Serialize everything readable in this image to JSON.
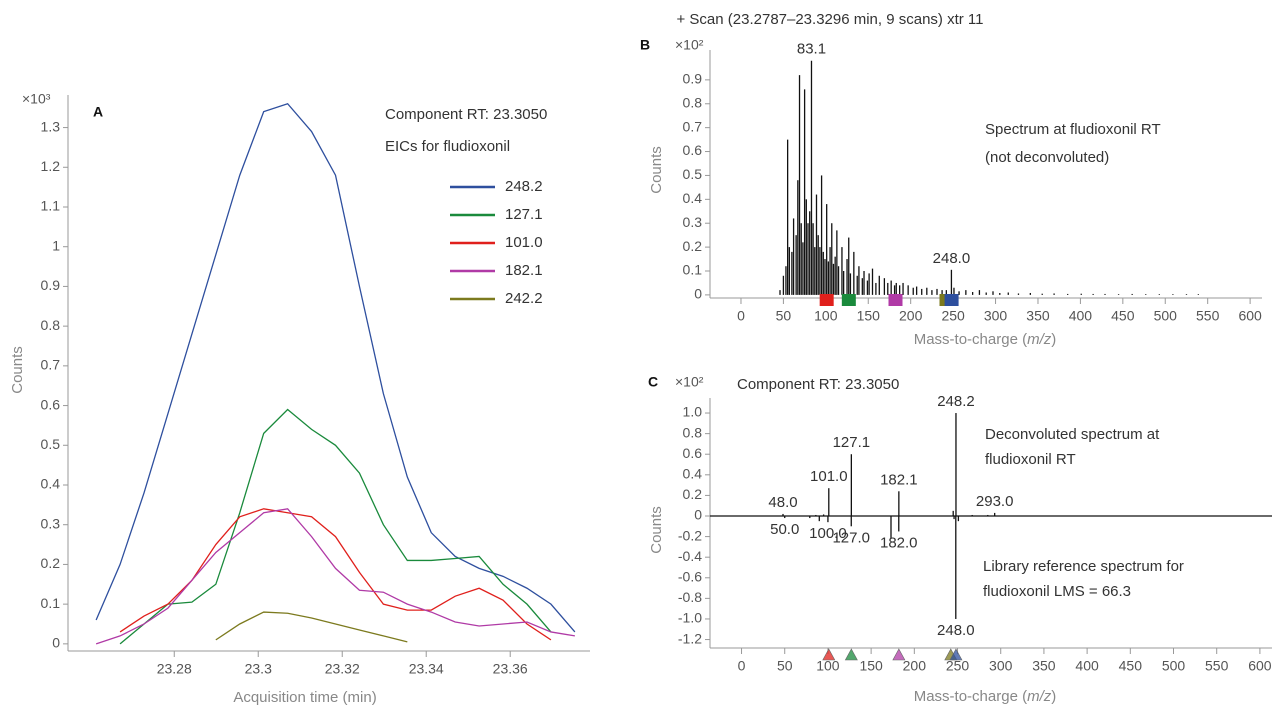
{
  "chart_data": [
    {
      "type": "line",
      "panel_label": "A",
      "unit_label": "×10³",
      "y_label": "Counts",
      "x_label": "Acquisition time (min)",
      "notes": [
        "Component RT: 23.3050",
        "EICs for fludioxonil"
      ],
      "x": [
        23.2614,
        23.2671,
        23.2728,
        23.2785,
        23.2842,
        23.2899,
        23.2956,
        23.3013,
        23.307,
        23.3127,
        23.3184,
        23.3241,
        23.3298,
        23.3355,
        23.3412,
        23.3469,
        23.3526,
        23.3583,
        23.364,
        23.3697,
        23.3754
      ],
      "xlim": [
        23.2547,
        23.379
      ],
      "xticks": [
        23.28,
        23.3,
        23.32,
        23.34,
        23.36
      ],
      "ylim": [
        -0.018,
        1.382
      ],
      "yticks": [
        0,
        0.1,
        0.2,
        0.3,
        0.4,
        0.5,
        0.6,
        0.7,
        0.8,
        0.9,
        1,
        1.1,
        1.2,
        1.3
      ],
      "series": [
        {
          "name": "248.2",
          "color": "#2e4f9e",
          "values": [
            0.06,
            0.2,
            0.38,
            0.58,
            0.78,
            0.98,
            1.18,
            1.34,
            1.36,
            1.29,
            1.18,
            0.9,
            0.63,
            0.42,
            0.28,
            0.22,
            0.19,
            0.17,
            0.14,
            0.1,
            0.03
          ]
        },
        {
          "name": "127.1",
          "color": "#1a8a3c",
          "values": [
            null,
            0,
            0.05,
            0.1,
            0.105,
            0.15,
            0.33,
            0.53,
            0.59,
            0.54,
            0.5,
            0.43,
            0.3,
            0.21,
            0.21,
            0.215,
            0.22,
            0.15,
            0.1,
            0.03,
            null
          ]
        },
        {
          "name": "101.0",
          "color": "#e0201c",
          "values": [
            null,
            0.03,
            0.07,
            0.1,
            0.16,
            0.25,
            0.32,
            0.34,
            0.33,
            0.32,
            0.27,
            0.18,
            0.1,
            0.085,
            0.085,
            0.12,
            0.14,
            0.11,
            0.05,
            0.01,
            null
          ]
        },
        {
          "name": "182.1",
          "color": "#b03aa6",
          "values": [
            0,
            0.02,
            0.05,
            0.09,
            0.16,
            0.23,
            0.28,
            0.33,
            0.34,
            0.27,
            0.19,
            0.135,
            0.13,
            0.1,
            0.08,
            0.055,
            0.045,
            0.05,
            0.055,
            0.03,
            0.02
          ]
        },
        {
          "name": "242.2",
          "color": "#7c7a1e",
          "values": [
            null,
            null,
            null,
            null,
            null,
            0.01,
            0.05,
            0.08,
            0.077,
            0.065,
            0.05,
            0.035,
            0.02,
            0.005,
            null,
            null,
            null,
            null,
            null,
            null,
            null
          ]
        }
      ]
    },
    {
      "type": "spectrum",
      "panel_label": "B",
      "unit_label": "×10²",
      "title": "+ Scan (23.2787–23.3296 min, 9 scans) xtr 11",
      "y_label": "Counts",
      "x_label_parts": [
        "Mass-to-charge (",
        "m/z",
        ")"
      ],
      "notes": [
        "Spectrum at fludioxonil RT",
        "(not deconvoluted)"
      ],
      "xlim": [
        -36.5,
        614
      ],
      "xticks": [
        0,
        50,
        100,
        150,
        200,
        250,
        300,
        350,
        400,
        450,
        500,
        550,
        600
      ],
      "ylim": [
        -0.013,
        1.025
      ],
      "yticks": [
        0,
        0.1,
        0.2,
        0.3,
        0.4,
        0.5,
        0.6,
        0.7,
        0.8,
        0.9
      ],
      "color": "#111111",
      "highlight_mz": [
        101,
        127.1,
        182.1,
        242.2,
        248.2
      ],
      "highlight_colors": [
        "#e0201c",
        "#1a8a3c",
        "#b03aa6",
        "#7c7a1e",
        "#2e4f9e"
      ],
      "peaks": [
        {
          "mz": 46,
          "value": 0.02
        },
        {
          "mz": 50,
          "value": 0.08
        },
        {
          "mz": 53,
          "value": 0.12
        },
        {
          "mz": 55,
          "value": 0.65
        },
        {
          "mz": 57,
          "value": 0.2
        },
        {
          "mz": 60,
          "value": 0.18
        },
        {
          "mz": 62,
          "value": 0.32
        },
        {
          "mz": 65,
          "value": 0.25
        },
        {
          "mz": 67,
          "value": 0.48
        },
        {
          "mz": 69,
          "value": 0.92
        },
        {
          "mz": 71,
          "value": 0.3
        },
        {
          "mz": 73,
          "value": 0.22
        },
        {
          "mz": 75,
          "value": 0.86
        },
        {
          "mz": 77,
          "value": 0.4
        },
        {
          "mz": 79,
          "value": 0.3
        },
        {
          "mz": 81,
          "value": 0.35
        },
        {
          "mz": 83.1,
          "value": 0.98,
          "label": "83.1"
        },
        {
          "mz": 85,
          "value": 0.3
        },
        {
          "mz": 87,
          "value": 0.2
        },
        {
          "mz": 89,
          "value": 0.42
        },
        {
          "mz": 91,
          "value": 0.25
        },
        {
          "mz": 93,
          "value": 0.2
        },
        {
          "mz": 95,
          "value": 0.5
        },
        {
          "mz": 97,
          "value": 0.18
        },
        {
          "mz": 99,
          "value": 0.15
        },
        {
          "mz": 101,
          "value": 0.38
        },
        {
          "mz": 103,
          "value": 0.14
        },
        {
          "mz": 105,
          "value": 0.2
        },
        {
          "mz": 107,
          "value": 0.3
        },
        {
          "mz": 109,
          "value": 0.13
        },
        {
          "mz": 111,
          "value": 0.16
        },
        {
          "mz": 113,
          "value": 0.27
        },
        {
          "mz": 115,
          "value": 0.12
        },
        {
          "mz": 119,
          "value": 0.2
        },
        {
          "mz": 121,
          "value": 0.1
        },
        {
          "mz": 125,
          "value": 0.15
        },
        {
          "mz": 127,
          "value": 0.24
        },
        {
          "mz": 129,
          "value": 0.09
        },
        {
          "mz": 133,
          "value": 0.18
        },
        {
          "mz": 137,
          "value": 0.08
        },
        {
          "mz": 139,
          "value": 0.12
        },
        {
          "mz": 143,
          "value": 0.07
        },
        {
          "mz": 145,
          "value": 0.1
        },
        {
          "mz": 149,
          "value": 0.06
        },
        {
          "mz": 151,
          "value": 0.09
        },
        {
          "mz": 155,
          "value": 0.11
        },
        {
          "mz": 159,
          "value": 0.05
        },
        {
          "mz": 163,
          "value": 0.08
        },
        {
          "mz": 169,
          "value": 0.07
        },
        {
          "mz": 173,
          "value": 0.05
        },
        {
          "mz": 177,
          "value": 0.06
        },
        {
          "mz": 181,
          "value": 0.04
        },
        {
          "mz": 183,
          "value": 0.05
        },
        {
          "mz": 187,
          "value": 0.04
        },
        {
          "mz": 191,
          "value": 0.05
        },
        {
          "mz": 197,
          "value": 0.04
        },
        {
          "mz": 203,
          "value": 0.03
        },
        {
          "mz": 207,
          "value": 0.035
        },
        {
          "mz": 213,
          "value": 0.025
        },
        {
          "mz": 219,
          "value": 0.03
        },
        {
          "mz": 225,
          "value": 0.02
        },
        {
          "mz": 231,
          "value": 0.025
        },
        {
          "mz": 237,
          "value": 0.02
        },
        {
          "mz": 242,
          "value": 0.02
        },
        {
          "mz": 248,
          "value": 0.105,
          "label": "248.0"
        },
        {
          "mz": 251,
          "value": 0.03
        },
        {
          "mz": 257,
          "value": 0.015
        },
        {
          "mz": 265,
          "value": 0.02
        },
        {
          "mz": 273,
          "value": 0.012
        },
        {
          "mz": 281,
          "value": 0.02
        },
        {
          "mz": 289,
          "value": 0.01
        },
        {
          "mz": 297,
          "value": 0.015
        },
        {
          "mz": 305,
          "value": 0.008
        },
        {
          "mz": 315,
          "value": 0.01
        },
        {
          "mz": 327,
          "value": 0.006
        },
        {
          "mz": 341,
          "value": 0.008
        },
        {
          "mz": 355,
          "value": 0.005
        },
        {
          "mz": 369,
          "value": 0.006
        },
        {
          "mz": 385,
          "value": 0.004
        },
        {
          "mz": 401,
          "value": 0.005
        },
        {
          "mz": 415,
          "value": 0.004
        },
        {
          "mz": 429,
          "value": 0.004
        },
        {
          "mz": 445,
          "value": 0.003
        },
        {
          "mz": 461,
          "value": 0.004
        },
        {
          "mz": 477,
          "value": 0.003
        },
        {
          "mz": 493,
          "value": 0.003
        },
        {
          "mz": 509,
          "value": 0.003
        },
        {
          "mz": 525,
          "value": 0.003
        },
        {
          "mz": 539,
          "value": 0.003
        }
      ]
    },
    {
      "type": "mirror",
      "panel_label": "C",
      "unit_label": "×10²",
      "subtitle": "Component RT: 23.3050",
      "y_label": "Counts",
      "x_label_parts": [
        "Mass-to-charge (",
        "m/z",
        ")"
      ],
      "notes": [
        "Deconvoluted spectrum at",
        "fludioxonil RT",
        "Library reference spectrum for",
        "fludioxonil LMS = 66.3"
      ],
      "xlim": [
        -36.5,
        614
      ],
      "xticks": [
        0,
        50,
        100,
        150,
        200,
        250,
        300,
        350,
        400,
        450,
        500,
        550,
        600
      ],
      "ylim": [
        -1.282,
        1.146
      ],
      "yticks": [
        {
          "value": 1,
          "label": "1.0"
        },
        0.8,
        0.6,
        0.4,
        0.2,
        0,
        -0.2,
        -0.4,
        -0.6,
        -0.8,
        {
          "value": -1,
          "label": "-1.0"
        },
        -1.2
      ],
      "color": "#111111",
      "highlight_mz": [
        101,
        127.1,
        182.1,
        242.2,
        248.2
      ],
      "highlight_colors": [
        "#e0201c",
        "#1a8a3c",
        "#b03aa6",
        "#7c7a1e",
        "#2e4f9e"
      ],
      "upper": [
        {
          "mz": 48,
          "value": 0.02,
          "label": "48.0"
        },
        {
          "mz": 86,
          "value": 0.01
        },
        {
          "mz": 95,
          "value": 0.015
        },
        {
          "mz": 101,
          "value": 0.27,
          "label": "101.0"
        },
        {
          "mz": 127.1,
          "value": 0.6,
          "label": "127.1"
        },
        {
          "mz": 182.1,
          "value": 0.24,
          "label": "182.1"
        },
        {
          "mz": 245,
          "value": 0.05
        },
        {
          "mz": 248.2,
          "value": 1,
          "label": "248.2"
        },
        {
          "mz": 267,
          "value": 0.01
        },
        {
          "mz": 285,
          "value": 0.01
        },
        {
          "mz": 293,
          "value": 0.03,
          "label": "293.0"
        }
      ],
      "lower": [
        {
          "mz": 50,
          "value": -0.02,
          "label": "50.0"
        },
        {
          "mz": 79,
          "value": -0.02
        },
        {
          "mz": 90,
          "value": -0.05
        },
        {
          "mz": 100,
          "value": -0.06,
          "label": "100.0"
        },
        {
          "mz": 127,
          "value": -0.1,
          "label": "127.0"
        },
        {
          "mz": 173,
          "value": -0.22
        },
        {
          "mz": 182,
          "value": -0.15,
          "label": "182.0"
        },
        {
          "mz": 246,
          "value": -0.03
        },
        {
          "mz": 248,
          "value": -1,
          "label": "248.0"
        },
        {
          "mz": 251,
          "value": -0.05
        }
      ]
    }
  ]
}
